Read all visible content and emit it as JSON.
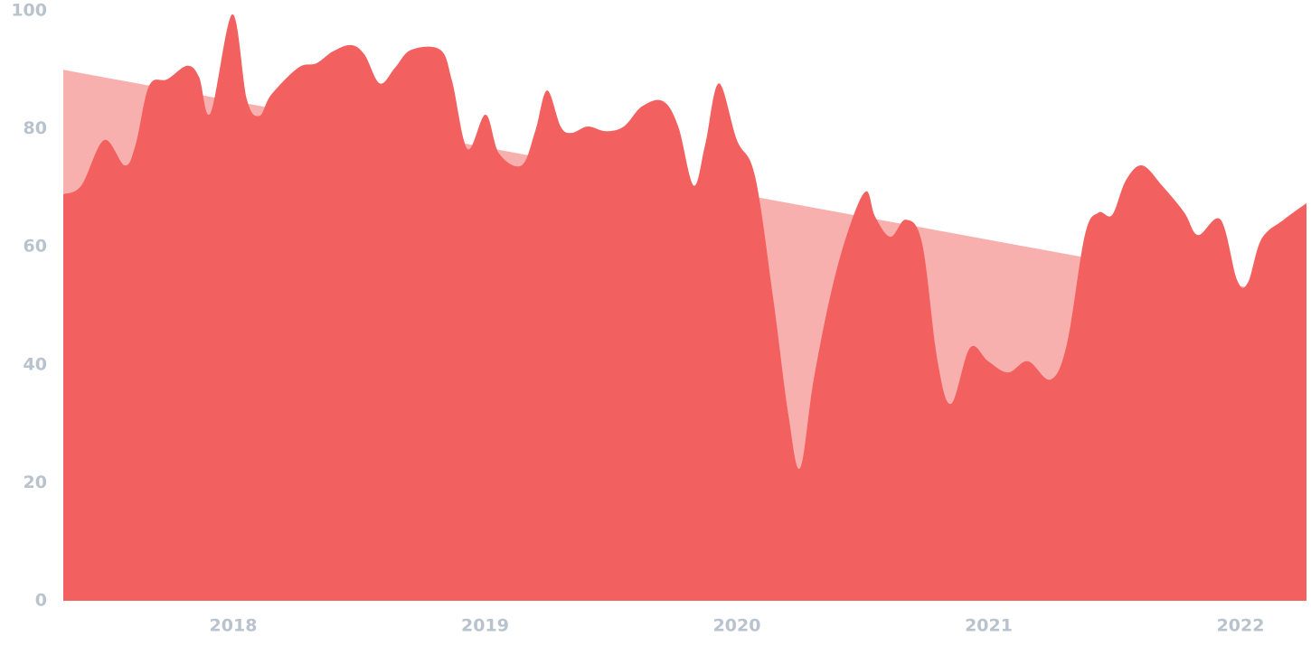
{
  "chart_data": {
    "type": "area",
    "x": [
      2017.325,
      2017.397,
      2017.487,
      2017.569,
      2017.612,
      2017.666,
      2017.738,
      2017.817,
      2017.864,
      2017.91,
      2017.996,
      2018.054,
      2018.104,
      2018.151,
      2018.259,
      2018.33,
      2018.395,
      2018.467,
      2018.521,
      2018.582,
      2018.643,
      2018.707,
      2018.822,
      2018.869,
      2018.93,
      2019.002,
      2019.056,
      2019.145,
      2019.199,
      2019.246,
      2019.3,
      2019.343,
      2019.408,
      2019.479,
      2019.551,
      2019.623,
      2019.706,
      2019.767,
      2019.828,
      2019.874,
      2019.928,
      2020.0,
      2020.072,
      2020.144,
      2020.205,
      2020.251,
      2020.305,
      2020.377,
      2020.449,
      2020.513,
      2020.549,
      2020.61,
      2020.671,
      2020.736,
      2020.797,
      2020.851,
      2020.926,
      2020.998,
      2021.077,
      2021.156,
      2021.246,
      2021.311,
      2021.382,
      2021.436,
      2021.49,
      2021.544,
      2021.609,
      2021.688,
      2021.777,
      2021.831,
      2021.921,
      2021.986,
      2022.029,
      2022.083,
      2022.172,
      2022.262
    ],
    "series": [
      {
        "color": "#f26060",
        "values": [
          68.9,
          70.4,
          78.1,
          73.8,
          77.3,
          87.3,
          88.4,
          90.7,
          88.8,
          82.7,
          99.4,
          85.0,
          82.2,
          85.8,
          90.4,
          91.1,
          93.1,
          94.2,
          92.6,
          87.7,
          90.4,
          93.4,
          93.4,
          88.1,
          76.6,
          82.4,
          75.8,
          73.8,
          79.6,
          86.5,
          80.4,
          79.3,
          80.4,
          79.6,
          80.4,
          83.8,
          84.7,
          80.4,
          70.4,
          77.3,
          87.7,
          78.1,
          72.0,
          51.3,
          31.4,
          22.5,
          37.5,
          52.8,
          63.6,
          69.4,
          65.1,
          61.7,
          64.6,
          60.5,
          40.6,
          33.4,
          42.9,
          40.6,
          38.7,
          40.6,
          37.5,
          43.6,
          62.0,
          65.8,
          65.4,
          71.2,
          73.8,
          70.4,
          65.8,
          62.0,
          64.6,
          54.4,
          53.9,
          61.3,
          64.6,
          67.4
        ]
      }
    ],
    "trend": {
      "color": "#f7b0ae",
      "x": [
        2017.325,
        2022.262
      ],
      "values": [
        90,
        51.3
      ]
    },
    "xlim": [
      2017.325,
      2022.262
    ],
    "xticks": [
      2018,
      2019,
      2020,
      2021,
      2022
    ],
    "ylim": [
      0,
      100
    ],
    "yticks": [
      0,
      20,
      40,
      60,
      80,
      100
    ],
    "grid": false
  }
}
